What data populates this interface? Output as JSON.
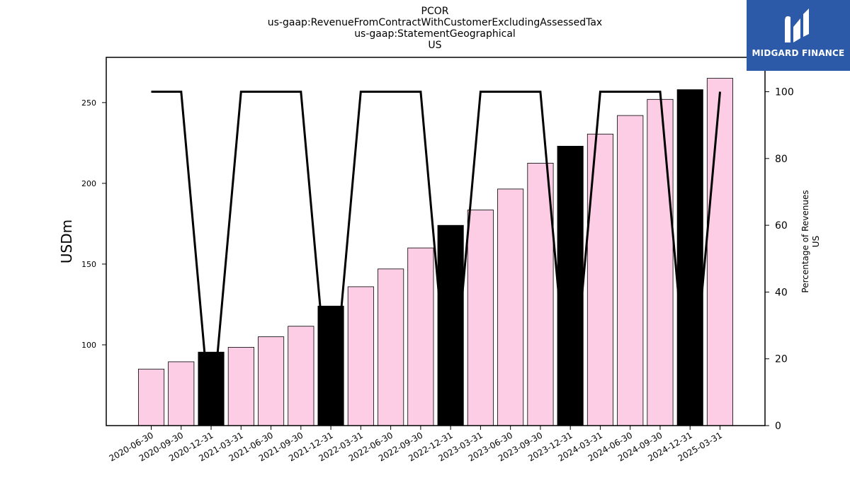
{
  "chart_data": {
    "type": "bar",
    "title_lines": [
      "PCOR",
      "us-gaap:RevenueFromContractWithCustomerExcludingAssessedTax",
      "us-gaap:StatementGeographical",
      "US"
    ],
    "ylabel": "USDm",
    "ylabel_right": [
      "Percentage of Revenues",
      "US"
    ],
    "categories": [
      "2020-06-30",
      "2020-09-30",
      "2020-12-31",
      "2021-03-31",
      "2021-06-30",
      "2021-09-30",
      "2021-12-31",
      "2022-03-31",
      "2022-06-30",
      "2022-09-30",
      "2022-12-31",
      "2023-03-31",
      "2023-06-30",
      "2023-09-30",
      "2023-12-31",
      "2024-03-31",
      "2024-06-30",
      "2024-09-30",
      "2024-12-31",
      "2025-03-31"
    ],
    "series": [
      {
        "axis": "left",
        "type": "bar",
        "values": [
          85,
          89.5,
          95.5,
          98.5,
          105,
          111.5,
          124,
          136,
          147,
          160,
          174,
          183.5,
          196.5,
          212.5,
          223,
          230.5,
          242,
          252,
          258,
          265
        ],
        "highlight_colors": [
          "#fccde5",
          "#fccde5",
          "#000000",
          "#fccde5",
          "#fccde5",
          "#fccde5",
          "#000000",
          "#fccde5",
          "#fccde5",
          "#fccde5",
          "#000000",
          "#fccde5",
          "#fccde5",
          "#fccde5",
          "#000000",
          "#fccde5",
          "#fccde5",
          "#fccde5",
          "#000000",
          "#fccde5"
        ]
      },
      {
        "axis": "right",
        "type": "line",
        "values": [
          100,
          100,
          0,
          100,
          100,
          100,
          0,
          100,
          100,
          100,
          0,
          100,
          100,
          100,
          0,
          100,
          100,
          100,
          0,
          100
        ]
      }
    ],
    "ylim": [
      50,
      278
    ],
    "yticks": [
      100,
      150,
      200,
      250
    ],
    "ylim_right": [
      0,
      105
    ],
    "yticks_right": [
      0,
      20,
      40,
      60,
      80,
      100
    ],
    "grid": false,
    "colors": {
      "bar_default": "#fccde5",
      "bar_highlight": "#000000",
      "line": "#000000"
    }
  },
  "logo": {
    "text": "MIDGARD FINANCE",
    "background": "#2c5aa8"
  }
}
